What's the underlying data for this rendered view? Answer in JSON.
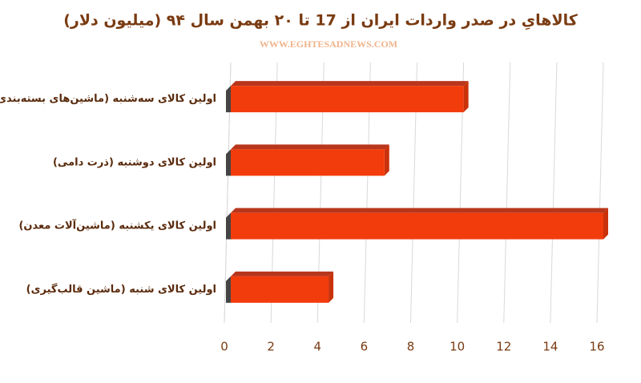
{
  "chart_data": {
    "type": "bar",
    "orientation": "horizontal",
    "title": "کالاهایِ در صدر واردات ایران از 17 تا ۲۰ بهمن سال ۹۴ (میلیون دلار)",
    "subtitle": "WWW.EGHTESADNEWS.COM",
    "categories": [
      "اولین کالای سه‌شنبه (ماشین‌های بسته‌بندی)",
      "اولین کالای دوشنبه (ذرت دامی)",
      "اولین کالای یکشنبه (ماشین‌آلات معدن)",
      "اولین کالای شنبه (ماشین قالب‌گیری)"
    ],
    "values": [
      10,
      6.6,
      16,
      4.2
    ],
    "color": "#f23c0c",
    "xlim": [
      0,
      16
    ],
    "xticks": [
      0,
      2,
      4,
      6,
      8,
      10,
      12,
      14,
      16
    ],
    "grid": true
  }
}
